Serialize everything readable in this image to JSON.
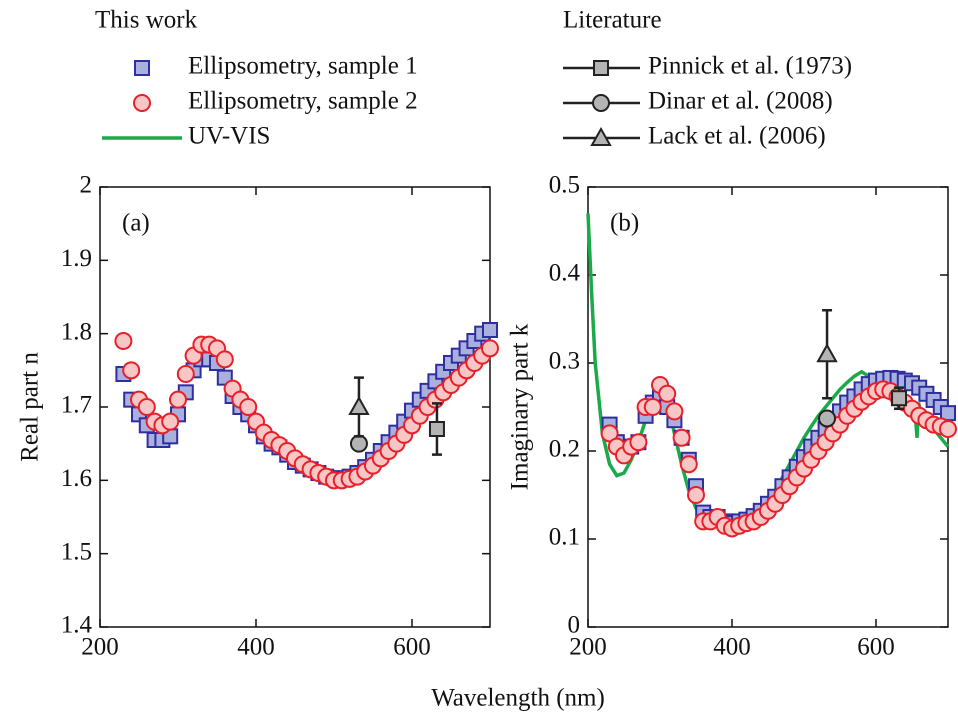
{
  "figure": {
    "xlabel": "Wavelength (nm)",
    "legend_groups": [
      "This work",
      "Literature"
    ]
  },
  "chart_data": [
    {
      "type": "scatter",
      "title": "(a)",
      "ylabel": "Real part n",
      "xlim": [
        200,
        700
      ],
      "ylim": [
        1.4,
        2
      ],
      "xticks": [
        200,
        400,
        600
      ],
      "yticks": [
        1.4,
        1.5,
        1.6,
        1.7,
        1.8,
        1.9,
        2
      ],
      "series": [
        {
          "name": "Ellipsometry, sample 1",
          "marker": "square",
          "color": "#aab0de",
          "edge": "#2e2ea0",
          "x": [
            230,
            240,
            250,
            260,
            270,
            280,
            290,
            300,
            310,
            320,
            330,
            340,
            350,
            360,
            370,
            380,
            390,
            400,
            410,
            420,
            430,
            440,
            450,
            460,
            470,
            480,
            490,
            500,
            510,
            520,
            530,
            540,
            550,
            560,
            570,
            580,
            590,
            600,
            610,
            620,
            630,
            640,
            650,
            660,
            670,
            680,
            690,
            700
          ],
          "values": [
            1.745,
            1.71,
            1.69,
            1.675,
            1.655,
            1.655,
            1.66,
            1.69,
            1.72,
            1.75,
            1.765,
            1.765,
            1.76,
            1.74,
            1.715,
            1.7,
            1.69,
            1.675,
            1.66,
            1.65,
            1.645,
            1.635,
            1.625,
            1.62,
            1.615,
            1.61,
            1.605,
            1.603,
            1.602,
            1.605,
            1.61,
            1.618,
            1.628,
            1.64,
            1.652,
            1.665,
            1.68,
            1.695,
            1.71,
            1.722,
            1.735,
            1.748,
            1.76,
            1.77,
            1.78,
            1.79,
            1.8,
            1.805
          ]
        },
        {
          "name": "Ellipsometry, sample 2",
          "marker": "circle",
          "color": "#f9c6c6",
          "edge": "#e8202a",
          "x": [
            230,
            240,
            250,
            260,
            270,
            280,
            290,
            300,
            310,
            320,
            330,
            340,
            350,
            360,
            370,
            380,
            390,
            400,
            410,
            420,
            430,
            440,
            450,
            460,
            470,
            480,
            490,
            500,
            510,
            520,
            530,
            540,
            550,
            560,
            570,
            580,
            590,
            600,
            610,
            620,
            630,
            640,
            650,
            660,
            670,
            680,
            690,
            700
          ],
          "values": [
            1.79,
            1.75,
            1.71,
            1.7,
            1.68,
            1.675,
            1.68,
            1.71,
            1.745,
            1.77,
            1.785,
            1.785,
            1.78,
            1.765,
            1.725,
            1.71,
            1.7,
            1.68,
            1.665,
            1.655,
            1.648,
            1.64,
            1.63,
            1.622,
            1.615,
            1.61,
            1.605,
            1.6,
            1.6,
            1.602,
            1.605,
            1.612,
            1.62,
            1.63,
            1.64,
            1.65,
            1.662,
            1.675,
            1.688,
            1.7,
            1.71,
            1.72,
            1.73,
            1.74,
            1.75,
            1.76,
            1.77,
            1.78
          ]
        },
        {
          "name": "Pinnick et al. (1973)",
          "marker": "square",
          "color": "#b4b4b4",
          "edge": "#222222",
          "x": [
            632
          ],
          "values": [
            1.67
          ],
          "errors": [
            0.035
          ]
        },
        {
          "name": "Dinar et al. (2008)",
          "marker": "circle",
          "color": "#b4b4b4",
          "edge": "#222222",
          "x": [
            532
          ],
          "values": [
            1.65
          ]
        },
        {
          "name": "Lack et al. (2006)",
          "marker": "triangle",
          "color": "#b4b4b4",
          "edge": "#222222",
          "x": [
            532
          ],
          "values": [
            1.7
          ],
          "errors": [
            0.04
          ]
        }
      ]
    },
    {
      "type": "scatter",
      "title": "(b)",
      "ylabel": "Imaginary part k",
      "xlim": [
        200,
        700
      ],
      "ylim": [
        0,
        0.5
      ],
      "xticks": [
        200,
        400,
        600
      ],
      "yticks": [
        0,
        0.1,
        0.2,
        0.3,
        0.4,
        0.5
      ],
      "series": [
        {
          "name": "Ellipsometry, sample 1",
          "marker": "square",
          "color": "#aab0de",
          "edge": "#2e2ea0",
          "x": [
            230,
            240,
            250,
            260,
            270,
            280,
            290,
            300,
            310,
            320,
            330,
            340,
            350,
            360,
            370,
            380,
            390,
            400,
            410,
            420,
            430,
            440,
            450,
            460,
            470,
            480,
            490,
            500,
            510,
            520,
            530,
            540,
            550,
            560,
            570,
            580,
            590,
            600,
            610,
            620,
            630,
            640,
            650,
            660,
            670,
            680,
            690,
            700
          ],
          "values": [
            0.23,
            0.21,
            0.2,
            0.205,
            0.21,
            0.24,
            0.255,
            0.265,
            0.25,
            0.235,
            0.215,
            0.19,
            0.16,
            0.13,
            0.125,
            0.125,
            0.12,
            0.118,
            0.12,
            0.122,
            0.126,
            0.132,
            0.14,
            0.148,
            0.16,
            0.17,
            0.182,
            0.193,
            0.205,
            0.215,
            0.225,
            0.235,
            0.245,
            0.255,
            0.262,
            0.27,
            0.276,
            0.28,
            0.282,
            0.283,
            0.282,
            0.28,
            0.277,
            0.272,
            0.265,
            0.258,
            0.25,
            0.243
          ]
        },
        {
          "name": "Ellipsometry, sample 2",
          "marker": "circle",
          "color": "#f9c6c6",
          "edge": "#e8202a",
          "x": [
            230,
            240,
            250,
            260,
            270,
            280,
            290,
            300,
            310,
            320,
            330,
            340,
            350,
            360,
            370,
            380,
            390,
            400,
            410,
            420,
            430,
            440,
            450,
            460,
            470,
            480,
            490,
            500,
            510,
            520,
            530,
            540,
            550,
            560,
            570,
            580,
            590,
            600,
            610,
            620,
            630,
            640,
            650,
            660,
            670,
            680,
            690,
            700
          ],
          "values": [
            0.22,
            0.205,
            0.195,
            0.205,
            0.21,
            0.25,
            0.25,
            0.275,
            0.265,
            0.245,
            0.215,
            0.185,
            0.15,
            0.12,
            0.12,
            0.125,
            0.115,
            0.112,
            0.115,
            0.118,
            0.12,
            0.125,
            0.132,
            0.14,
            0.15,
            0.16,
            0.17,
            0.18,
            0.19,
            0.2,
            0.21,
            0.22,
            0.23,
            0.24,
            0.248,
            0.256,
            0.262,
            0.268,
            0.27,
            0.268,
            0.262,
            0.255,
            0.248,
            0.24,
            0.235,
            0.23,
            0.228,
            0.225
          ]
        },
        {
          "name": "UV-VIS",
          "marker": "line",
          "color": "#1aaa4a",
          "x": [
            200,
            205,
            210,
            220,
            230,
            240,
            250,
            260,
            270,
            280,
            290,
            300,
            310,
            320,
            330,
            340,
            350,
            360,
            370,
            380,
            390,
            400,
            410,
            420,
            430,
            440,
            450,
            460,
            470,
            480,
            490,
            500,
            510,
            520,
            530,
            540,
            550,
            560,
            570,
            580,
            590,
            600,
            610,
            620,
            630,
            640,
            650,
            655,
            657,
            659,
            665,
            680,
            700
          ],
          "values": [
            0.47,
            0.38,
            0.3,
            0.22,
            0.185,
            0.172,
            0.175,
            0.19,
            0.21,
            0.235,
            0.26,
            0.275,
            0.255,
            0.22,
            0.185,
            0.155,
            0.135,
            0.125,
            0.12,
            0.118,
            0.115,
            0.112,
            0.11,
            0.11,
            0.115,
            0.125,
            0.14,
            0.155,
            0.17,
            0.185,
            0.2,
            0.215,
            0.228,
            0.24,
            0.25,
            0.26,
            0.27,
            0.278,
            0.285,
            0.29,
            0.285,
            0.275,
            0.268,
            0.262,
            0.255,
            0.248,
            0.24,
            0.237,
            0.215,
            0.255,
            0.235,
            0.225,
            0.205
          ]
        },
        {
          "name": "Pinnick et al. (1973)",
          "marker": "square",
          "color": "#b4b4b4",
          "edge": "#222222",
          "x": [
            632
          ],
          "values": [
            0.26
          ],
          "errors": [
            0.012
          ]
        },
        {
          "name": "Dinar et al. (2008)",
          "marker": "circle",
          "color": "#b4b4b4",
          "edge": "#222222",
          "x": [
            532
          ],
          "values": [
            0.237
          ]
        },
        {
          "name": "Lack et al. (2006)",
          "marker": "triangle",
          "color": "#b4b4b4",
          "edge": "#222222",
          "x": [
            532
          ],
          "values": [
            0.31
          ],
          "errors": [
            0.05
          ]
        }
      ]
    }
  ]
}
